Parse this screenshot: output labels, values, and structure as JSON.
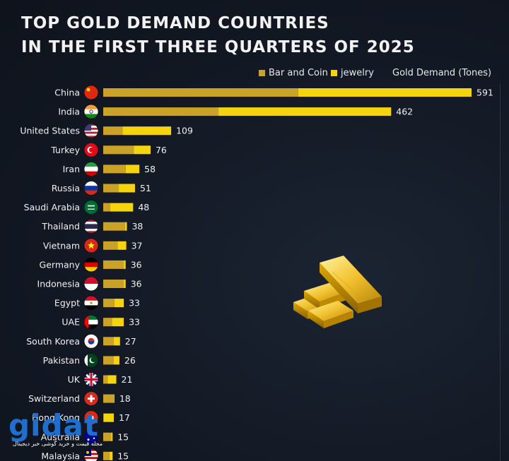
{
  "title_line1": "TOP GOLD DEMAND COUNTRIES",
  "title_line2": "IN THE FIRST THREE QUARTERS OF 2025",
  "legend": {
    "bar_and_coin": "Bar and Coin",
    "jewelry": "jewelry",
    "unit_label": "Gold Demand (Tones)"
  },
  "colors": {
    "bar_and_coin": "#c9a227",
    "jewelry": "#f5d40f",
    "background": "#131a26"
  },
  "watermark": {
    "brand": "gidat",
    "tagline": "مجله قیمت و خرید گوشی خبر دیجیتال"
  },
  "chart_data": {
    "type": "bar",
    "orientation": "horizontal",
    "stacked": true,
    "title": "TOP GOLD DEMAND COUNTRIES IN THE FIRST THREE QUARTERS OF 2025",
    "xlabel": "Gold Demand (Tones)",
    "xlim": [
      0,
      591
    ],
    "categories": [
      "China",
      "India",
      "United States",
      "Turkey",
      "Iran",
      "Russia",
      "Saudi Arabia",
      "Thailand",
      "Vietnam",
      "Germany",
      "Indonesia",
      "Egypt",
      "UAE",
      "South Korea",
      "Pakistan",
      "UK",
      "Switzerland",
      "Hong Kong",
      "Australia",
      "Malaysia"
    ],
    "flags": [
      "flag-china-icon",
      "flag-india-icon",
      "flag-united-states-icon",
      "flag-turkey-icon",
      "flag-iran-icon",
      "flag-russia-icon",
      "flag-saudi-arabia-icon",
      "flag-thailand-icon",
      "flag-vietnam-icon",
      "flag-germany-icon",
      "flag-indonesia-icon",
      "flag-egypt-icon",
      "flag-uae-icon",
      "flag-south-korea-icon",
      "flag-pakistan-icon",
      "flag-uk-icon",
      "flag-switzerland-icon",
      "flag-hong-kong-icon",
      "flag-australia-icon",
      "flag-malaysia-icon"
    ],
    "totals": [
      591,
      462,
      109,
      76,
      58,
      51,
      48,
      38,
      37,
      36,
      36,
      33,
      33,
      27,
      26,
      21,
      18,
      17,
      15,
      15
    ],
    "series": [
      {
        "name": "Bar and Coin",
        "values": [
          313,
          185,
          31,
          49,
          36,
          25,
          11,
          35,
          23,
          33,
          33,
          18,
          14,
          17,
          17,
          7,
          17,
          1,
          13,
          10
        ]
      },
      {
        "name": "jewelry",
        "values": [
          278,
          277,
          78,
          27,
          22,
          26,
          37,
          3,
          14,
          3,
          3,
          15,
          19,
          10,
          9,
          14,
          1,
          16,
          2,
          5
        ]
      }
    ]
  }
}
